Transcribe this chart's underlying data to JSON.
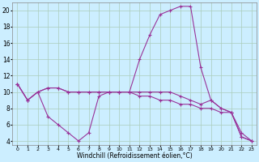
{
  "xlabel": "Windchill (Refroidissement éolien,°C)",
  "background_color": "#cceeff",
  "grid_color": "#aaccbb",
  "line_color": "#993399",
  "series": [
    [
      11,
      9,
      10,
      7,
      6,
      5,
      4,
      5,
      9.5,
      10,
      10,
      10,
      14,
      17,
      19.5,
      20,
      20.5,
      20.5,
      13,
      9,
      8,
      7.5,
      5,
      4
    ],
    [
      11,
      9,
      10,
      10.5,
      10.5,
      10,
      10,
      10,
      10,
      10,
      10,
      10,
      10,
      10,
      10,
      10,
      9.5,
      9,
      8.5,
      9,
      8,
      7.5,
      4.5,
      4
    ],
    [
      11,
      9,
      10,
      10.5,
      10.5,
      10,
      10,
      10,
      10,
      10,
      10,
      10,
      9.5,
      9.5,
      9,
      9,
      8.5,
      8.5,
      8,
      8,
      7.5,
      7.5,
      4.5,
      4
    ]
  ],
  "x": [
    0,
    1,
    2,
    3,
    4,
    5,
    6,
    7,
    8,
    9,
    10,
    11,
    12,
    13,
    14,
    15,
    16,
    17,
    18,
    19,
    20,
    21,
    22,
    23
  ],
  "ylim": [
    3.5,
    21
  ],
  "yticks": [
    4,
    6,
    8,
    10,
    12,
    14,
    16,
    18,
    20
  ],
  "figsize": [
    3.2,
    2.0
  ],
  "dpi": 100
}
